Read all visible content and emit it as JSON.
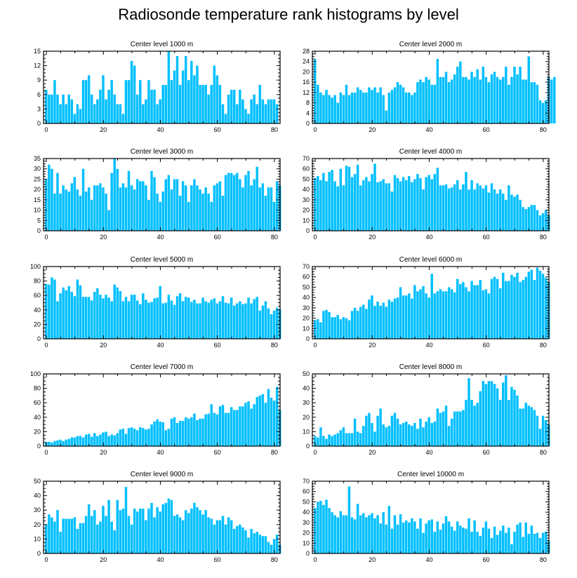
{
  "title": "Radiosonde temperature rank histograms by level",
  "colors": {
    "bar": "#00bfff",
    "bar_edge": "#ffffff",
    "frame": "#000000"
  },
  "chart_data": [
    {
      "type": "bar",
      "title": "Center level 1000 m",
      "ylim": [
        0,
        15
      ],
      "yticks": [
        0,
        3,
        6,
        9,
        12,
        15
      ],
      "xlim": [
        -1,
        82
      ],
      "xticks": [
        0,
        20,
        40,
        60,
        80
      ],
      "x_start": 0,
      "values": [
        7,
        6,
        6,
        9,
        6,
        4,
        6,
        4,
        6,
        5,
        2,
        4,
        3,
        9,
        9,
        10,
        6,
        4,
        5,
        7,
        10,
        5,
        7,
        9,
        6,
        4,
        4,
        2,
        9,
        9,
        13,
        12,
        6,
        9,
        4,
        5,
        9,
        7,
        7,
        4,
        5,
        8,
        8,
        15,
        9,
        11,
        14,
        8,
        11,
        14,
        9,
        13,
        10,
        12,
        8,
        8,
        8,
        6,
        8,
        12,
        10,
        8,
        4,
        2,
        6,
        7,
        7,
        4,
        7,
        5,
        3,
        2,
        5,
        6,
        4,
        8,
        5,
        4,
        5,
        5,
        5,
        4
      ],
      "xlabel": "",
      "ylabel": ""
    },
    {
      "type": "bar",
      "title": "Center level 2000 m",
      "ylim": [
        0,
        28
      ],
      "yticks": [
        0,
        4,
        8,
        12,
        16,
        20,
        24,
        28
      ],
      "xlim": [
        -1,
        82
      ],
      "xticks": [
        0,
        20,
        40,
        60,
        80
      ],
      "x_start": 0,
      "values": [
        25,
        15,
        12,
        11,
        13,
        11,
        10,
        11,
        8,
        12,
        11,
        15,
        11,
        12,
        12,
        14,
        13,
        12,
        12,
        14,
        13,
        14,
        12,
        14,
        11,
        5,
        12,
        13,
        14,
        16,
        15,
        14,
        12,
        12,
        11,
        12,
        16,
        17,
        16,
        18,
        17,
        15,
        15,
        25,
        18,
        18,
        20,
        16,
        17,
        19,
        22,
        24,
        18,
        18,
        17,
        20,
        18,
        21,
        17,
        22,
        18,
        16,
        19,
        20,
        18,
        17,
        18,
        22,
        15,
        18,
        22,
        19,
        22,
        17,
        17,
        26,
        16,
        16,
        15,
        9,
        8,
        9,
        18,
        17,
        18
      ],
      "xlabel": "",
      "ylabel": ""
    },
    {
      "type": "bar",
      "title": "Center level 3000 m",
      "ylim": [
        0,
        35
      ],
      "yticks": [
        0,
        5,
        10,
        15,
        20,
        25,
        30,
        35
      ],
      "xlim": [
        -1,
        82
      ],
      "xticks": [
        0,
        20,
        40,
        60,
        80
      ],
      "x_start": 0,
      "values": [
        25,
        32,
        30,
        18,
        28,
        18,
        22,
        20,
        19,
        23,
        26,
        20,
        17,
        30,
        19,
        21,
        15,
        22,
        22,
        23,
        21,
        18,
        10,
        28,
        35,
        30,
        21,
        23,
        21,
        29,
        22,
        20,
        25,
        24,
        24,
        22,
        15,
        29,
        26,
        18,
        14,
        19,
        25,
        27,
        20,
        25,
        25,
        17,
        24,
        22,
        14,
        22,
        25,
        22,
        20,
        18,
        21,
        18,
        14,
        22,
        23,
        24,
        17,
        27,
        28,
        28,
        27,
        28,
        25,
        21,
        27,
        29,
        22,
        25,
        31,
        21,
        23,
        17,
        21,
        21,
        14,
        24,
        22
      ],
      "xlabel": "",
      "ylabel": ""
    },
    {
      "type": "bar",
      "title": "Center level 4000 m",
      "ylim": [
        0,
        70
      ],
      "yticks": [
        0,
        10,
        20,
        30,
        40,
        50,
        60,
        70
      ],
      "xlim": [
        -1,
        82
      ],
      "xticks": [
        0,
        20,
        40,
        60,
        80
      ],
      "x_start": 0,
      "values": [
        51,
        53,
        49,
        56,
        48,
        57,
        59,
        48,
        43,
        60,
        44,
        63,
        62,
        52,
        55,
        64,
        44,
        49,
        52,
        48,
        55,
        65,
        47,
        48,
        50,
        46,
        46,
        38,
        54,
        51,
        48,
        52,
        49,
        53,
        47,
        50,
        55,
        51,
        40,
        52,
        54,
        50,
        55,
        61,
        44,
        44,
        45,
        41,
        42,
        45,
        49,
        40,
        45,
        57,
        40,
        49,
        40,
        46,
        44,
        41,
        44,
        37,
        46,
        40,
        36,
        40,
        36,
        30,
        44,
        35,
        33,
        35,
        30,
        23,
        21,
        23,
        25,
        25,
        20,
        15,
        17,
        20,
        15
      ],
      "xlabel": "",
      "ylabel": ""
    },
    {
      "type": "bar",
      "title": "Center level 5000 m",
      "ylim": [
        0,
        100
      ],
      "yticks": [
        0,
        20,
        40,
        60,
        80,
        100
      ],
      "xlim": [
        -1,
        82
      ],
      "xticks": [
        0,
        20,
        40,
        60,
        80
      ],
      "x_start": 0,
      "values": [
        76,
        75,
        85,
        82,
        52,
        63,
        71,
        67,
        73,
        65,
        59,
        82,
        74,
        58,
        58,
        58,
        53,
        65,
        70,
        61,
        56,
        61,
        57,
        52,
        75,
        71,
        66,
        52,
        58,
        52,
        61,
        61,
        53,
        48,
        63,
        54,
        50,
        51,
        56,
        57,
        73,
        49,
        50,
        61,
        53,
        47,
        59,
        63,
        52,
        58,
        57,
        51,
        54,
        49,
        49,
        57,
        52,
        50,
        54,
        56,
        49,
        52,
        59,
        50,
        49,
        57,
        46,
        49,
        52,
        48,
        49,
        57,
        49,
        55,
        58,
        39,
        46,
        52,
        42,
        34,
        39,
        43,
        41
      ],
      "xlabel": "",
      "ylabel": ""
    },
    {
      "type": "bar",
      "title": "Center level 6000 m",
      "ylim": [
        0,
        70
      ],
      "yticks": [
        0,
        10,
        20,
        30,
        40,
        50,
        60,
        70
      ],
      "xlim": [
        -1,
        82
      ],
      "xticks": [
        0,
        20,
        40,
        60,
        80
      ],
      "x_start": 0,
      "values": [
        18,
        19,
        16,
        27,
        28,
        26,
        21,
        21,
        23,
        19,
        21,
        20,
        18,
        27,
        30,
        27,
        31,
        33,
        29,
        38,
        42,
        32,
        36,
        32,
        35,
        31,
        38,
        36,
        39,
        40,
        50,
        42,
        42,
        44,
        39,
        52,
        46,
        48,
        51,
        44,
        40,
        63,
        44,
        46,
        48,
        46,
        46,
        50,
        48,
        45,
        58,
        53,
        55,
        50,
        46,
        56,
        52,
        52,
        57,
        47,
        48,
        44,
        58,
        60,
        58,
        49,
        64,
        56,
        56,
        62,
        60,
        64,
        55,
        57,
        60,
        65,
        67,
        57,
        69,
        66,
        63,
        59,
        55
      ],
      "xlabel": "",
      "ylabel": ""
    },
    {
      "type": "bar",
      "title": "Center level 7000 m",
      "ylim": [
        0,
        100
      ],
      "yticks": [
        0,
        20,
        40,
        60,
        80,
        100
      ],
      "xlim": [
        -1,
        82
      ],
      "xticks": [
        0,
        20,
        40,
        60,
        80
      ],
      "x_start": 0,
      "values": [
        6,
        6,
        5,
        7,
        8,
        9,
        7,
        9,
        10,
        12,
        12,
        14,
        14,
        12,
        16,
        17,
        13,
        18,
        14,
        16,
        19,
        20,
        14,
        16,
        15,
        18,
        23,
        24,
        17,
        25,
        26,
        24,
        22,
        26,
        25,
        23,
        24,
        30,
        34,
        37,
        34,
        33,
        22,
        24,
        38,
        40,
        32,
        35,
        35,
        40,
        38,
        40,
        45,
        36,
        38,
        38,
        44,
        45,
        58,
        46,
        44,
        55,
        57,
        46,
        46,
        54,
        50,
        50,
        55,
        55,
        60,
        62,
        52,
        58,
        68,
        70,
        72,
        60,
        79,
        67,
        63,
        82,
        50
      ],
      "xlabel": "",
      "ylabel": ""
    },
    {
      "type": "bar",
      "title": "Center level 8000 m",
      "ylim": [
        0,
        50
      ],
      "yticks": [
        0,
        10,
        20,
        30,
        40,
        50
      ],
      "xlim": [
        -1,
        82
      ],
      "xticks": [
        0,
        20,
        40,
        60,
        80
      ],
      "x_start": 0,
      "values": [
        7,
        6,
        13,
        7,
        5,
        8,
        7,
        8,
        9,
        11,
        13,
        9,
        9,
        9,
        19,
        10,
        9,
        14,
        21,
        23,
        16,
        10,
        21,
        26,
        15,
        13,
        14,
        21,
        23,
        19,
        15,
        16,
        17,
        15,
        14,
        16,
        12,
        19,
        13,
        17,
        20,
        16,
        17,
        26,
        23,
        24,
        28,
        14,
        19,
        24,
        24,
        24,
        25,
        32,
        47,
        32,
        28,
        30,
        38,
        45,
        43,
        45,
        45,
        43,
        40,
        32,
        44,
        49,
        32,
        41,
        39,
        35,
        26,
        26,
        30,
        28,
        27,
        25,
        21,
        12,
        21,
        18,
        15
      ],
      "xlabel": "",
      "ylabel": ""
    },
    {
      "type": "bar",
      "title": "Center level 9000 m",
      "ylim": [
        0,
        50
      ],
      "yticks": [
        0,
        10,
        20,
        30,
        40,
        50
      ],
      "xlim": [
        -1,
        82
      ],
      "xticks": [
        0,
        20,
        40,
        60,
        80
      ],
      "x_start": 0,
      "values": [
        20,
        27,
        25,
        22,
        30,
        15,
        24,
        24,
        24,
        24,
        25,
        17,
        21,
        21,
        26,
        34,
        26,
        30,
        20,
        22,
        33,
        26,
        37,
        22,
        16,
        37,
        30,
        31,
        46,
        26,
        20,
        31,
        29,
        31,
        31,
        23,
        31,
        35,
        25,
        32,
        29,
        34,
        35,
        38,
        37,
        26,
        27,
        25,
        23,
        30,
        28,
        31,
        35,
        32,
        30,
        27,
        30,
        25,
        24,
        20,
        23,
        23,
        26,
        20,
        25,
        23,
        17,
        19,
        20,
        18,
        16,
        11,
        17,
        14,
        15,
        13,
        12,
        12,
        8,
        6,
        10,
        13,
        6
      ],
      "xlabel": "",
      "ylabel": ""
    },
    {
      "type": "bar",
      "title": "Center level 10000 m",
      "ylim": [
        0,
        70
      ],
      "yticks": [
        0,
        10,
        20,
        30,
        40,
        50,
        60,
        70
      ],
      "xlim": [
        -1,
        82
      ],
      "xticks": [
        0,
        20,
        40,
        60,
        80
      ],
      "x_start": 0,
      "values": [
        44,
        50,
        51,
        47,
        52,
        44,
        40,
        37,
        35,
        41,
        37,
        37,
        65,
        35,
        33,
        48,
        37,
        39,
        35,
        37,
        39,
        34,
        37,
        29,
        40,
        28,
        46,
        24,
        37,
        28,
        38,
        30,
        32,
        30,
        34,
        31,
        24,
        34,
        20,
        29,
        32,
        33,
        21,
        31,
        23,
        29,
        36,
        31,
        26,
        22,
        31,
        27,
        25,
        24,
        34,
        21,
        32,
        21,
        17,
        25,
        31,
        24,
        15,
        26,
        18,
        22,
        27,
        20,
        25,
        9,
        21,
        28,
        30,
        16,
        30,
        19,
        27,
        19,
        20,
        15,
        20,
        21,
        12
      ],
      "xlabel": "",
      "ylabel": ""
    }
  ]
}
